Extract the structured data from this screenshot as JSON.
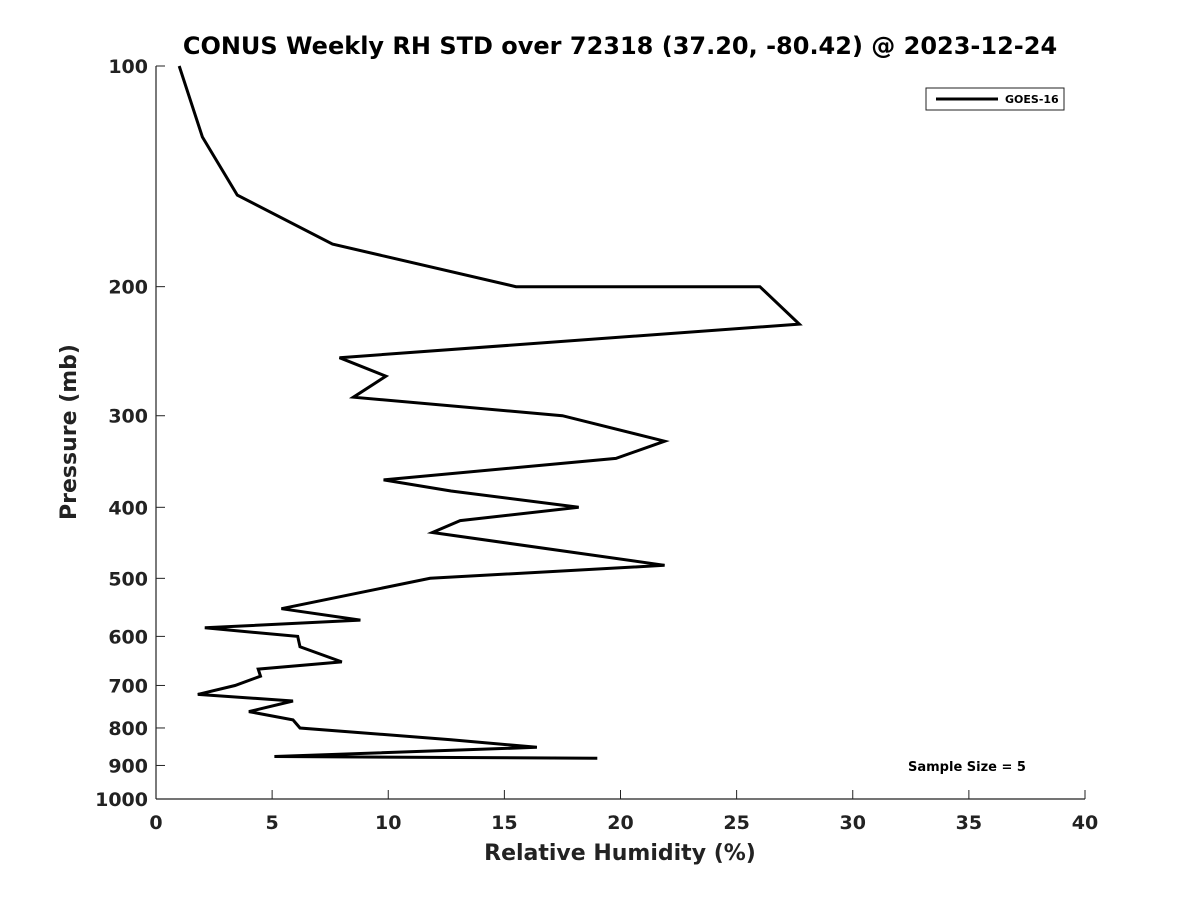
{
  "chart_data": {
    "type": "line",
    "title": "CONUS Weekly RH STD over 72318 (37.20, -80.42) @ 2023-12-24",
    "xlabel": "Relative Humidity (%)",
    "ylabel": "Pressure (mb)",
    "xlim": [
      0,
      40
    ],
    "ylim": [
      100,
      1000
    ],
    "y_scale": "log",
    "y_reversed": true,
    "grid": false,
    "legend_position": "top-right",
    "x_ticks": [
      "0",
      "5",
      "10",
      "15",
      "20",
      "25",
      "30",
      "35",
      "40"
    ],
    "y_ticks": [
      "100",
      "200",
      "300",
      "400",
      "500",
      "600",
      "700",
      "800",
      "900",
      "1000"
    ],
    "annotation": "Sample Size = 5",
    "series": [
      {
        "name": "GOES-16",
        "color": "#000000",
        "points": [
          [
            1.0,
            100
          ],
          [
            2.0,
            125
          ],
          [
            3.5,
            150
          ],
          [
            7.6,
            175
          ],
          [
            15.5,
            200
          ],
          [
            26.0,
            200
          ],
          [
            27.7,
            225
          ],
          [
            7.9,
            250
          ],
          [
            9.9,
            265
          ],
          [
            8.5,
            283
          ],
          [
            17.5,
            300
          ],
          [
            21.9,
            325
          ],
          [
            19.8,
            343
          ],
          [
            9.8,
            367
          ],
          [
            12.7,
            380
          ],
          [
            18.2,
            400
          ],
          [
            13.1,
            417
          ],
          [
            11.9,
            433
          ],
          [
            21.9,
            480
          ],
          [
            11.8,
            500
          ],
          [
            5.4,
            550
          ],
          [
            8.8,
            570
          ],
          [
            2.1,
            584
          ],
          [
            6.1,
            600
          ],
          [
            6.2,
            620
          ],
          [
            8.0,
            650
          ],
          [
            4.4,
            665
          ],
          [
            4.5,
            680
          ],
          [
            3.4,
            700
          ],
          [
            1.8,
            720
          ],
          [
            5.9,
            735
          ],
          [
            4.0,
            760
          ],
          [
            5.9,
            780
          ],
          [
            6.2,
            800
          ],
          [
            12.7,
            830
          ],
          [
            16.4,
            850
          ],
          [
            5.1,
            875
          ],
          [
            19.0,
            880
          ]
        ]
      }
    ]
  }
}
